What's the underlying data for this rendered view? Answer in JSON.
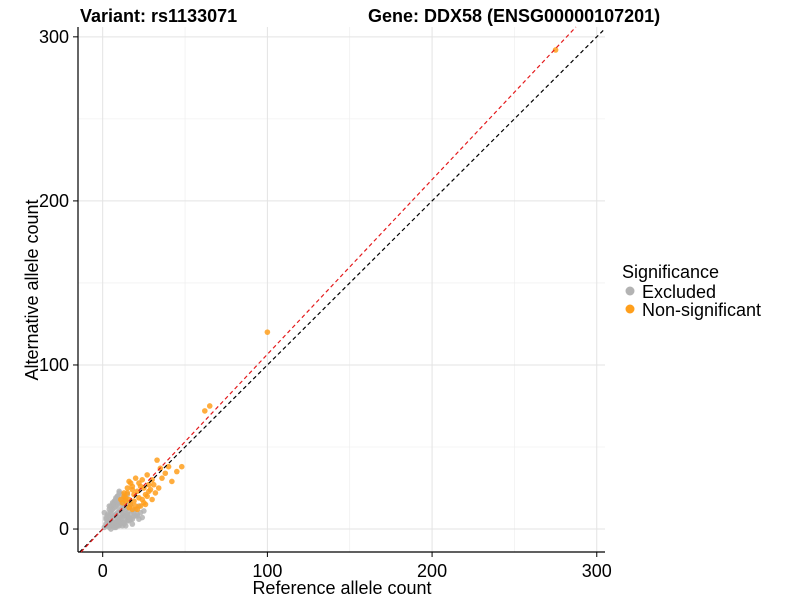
{
  "chart_data": {
    "type": "scatter",
    "title_left": "Variant: rs1133071",
    "title_right": "Gene: DDX58 (ENSG00000107201)",
    "xlabel": "Reference allele count",
    "ylabel": "Alternative allele count",
    "xlim": [
      -15,
      305
    ],
    "ylim": [
      -14,
      306
    ],
    "xticks": [
      0,
      100,
      200,
      300
    ],
    "yticks": [
      0,
      100,
      200,
      300
    ],
    "grid": true,
    "legend": {
      "title": "Significance",
      "position": "right",
      "entries": [
        {
          "label": "Excluded",
          "color": "#b3b3b3"
        },
        {
          "label": "Non-significant",
          "color": "#ff9f1c"
        }
      ]
    },
    "reference_lines": [
      {
        "name": "identity",
        "slope": 1.0,
        "intercept": 0,
        "color": "#000000",
        "dash": true
      },
      {
        "name": "fit",
        "slope": 1.065,
        "intercept": 0,
        "color": "#e41a1c",
        "dash": true
      }
    ],
    "series": [
      {
        "name": "Excluded",
        "color": "#b3b3b3",
        "x": [
          1,
          2,
          3,
          3,
          4,
          4,
          5,
          5,
          5,
          6,
          6,
          6,
          7,
          7,
          7,
          7,
          8,
          8,
          8,
          8,
          9,
          9,
          9,
          9,
          10,
          10,
          10,
          10,
          11,
          11,
          11,
          12,
          12,
          12,
          13,
          13,
          13,
          14,
          14,
          14,
          15,
          15,
          15,
          16,
          16,
          17,
          17,
          18,
          18,
          19,
          20,
          21,
          22,
          23,
          24,
          25,
          2,
          3,
          4,
          5,
          6,
          7,
          8,
          9,
          10,
          11,
          12,
          13,
          4,
          6,
          8,
          10,
          12,
          5,
          7,
          9,
          11,
          3,
          5,
          7,
          9,
          14,
          16,
          18,
          20,
          22,
          6,
          8,
          10,
          12,
          14,
          16,
          9,
          11,
          13,
          15,
          17,
          19,
          21,
          1,
          2,
          4
        ],
        "y": [
          1,
          3,
          2,
          5,
          4,
          8,
          3,
          6,
          10,
          2,
          7,
          12,
          4,
          8,
          13,
          16,
          3,
          9,
          14,
          18,
          5,
          10,
          15,
          20,
          2,
          7,
          12,
          22,
          6,
          11,
          17,
          4,
          9,
          14,
          3,
          8,
          19,
          6,
          12,
          16,
          5,
          10,
          21,
          7,
          13,
          9,
          15,
          6,
          11,
          8,
          12,
          9,
          14,
          10,
          7,
          11,
          6,
          9,
          12,
          14,
          16,
          17,
          19,
          20,
          23,
          18,
          21,
          13,
          1,
          2,
          1,
          3,
          2,
          0,
          1,
          2,
          4,
          8,
          11,
          4,
          6,
          2,
          5,
          3,
          8,
          6,
          15,
          18,
          16,
          10,
          8,
          6,
          5,
          7,
          4,
          9,
          6,
          11,
          8,
          10,
          7,
          14
        ]
      },
      {
        "name": "Non-significant",
        "color": "#ff9f1c",
        "x": [
          275,
          100,
          65,
          62,
          40,
          48,
          45,
          35,
          33,
          30,
          28,
          25,
          27,
          32,
          22,
          20,
          18,
          15,
          16,
          14,
          19,
          21,
          23,
          26,
          29,
          12,
          13,
          17,
          24,
          31,
          36,
          38,
          42,
          20,
          18,
          16,
          14,
          22,
          25,
          28,
          15,
          17,
          19,
          21,
          23,
          13,
          11,
          30,
          34,
          27,
          24,
          18,
          16,
          26
        ],
        "y": [
          292,
          120,
          75,
          72,
          38,
          38,
          35,
          37,
          42,
          30,
          27,
          25,
          20,
          22,
          28,
          31,
          24,
          22,
          18,
          19,
          17,
          23,
          26,
          21,
          24,
          16,
          20,
          15,
          18,
          27,
          31,
          34,
          29,
          14,
          12,
          13,
          17,
          19,
          16,
          23,
          25,
          28,
          21,
          12,
          14,
          22,
          18,
          18,
          25,
          33,
          30,
          26,
          29,
          15
        ]
      }
    ]
  }
}
